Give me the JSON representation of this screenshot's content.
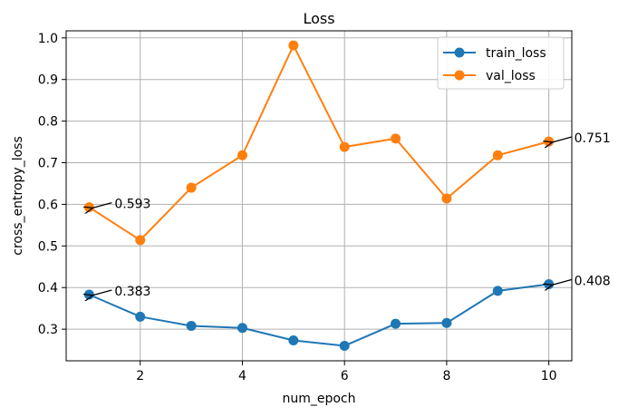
{
  "chart_data": {
    "type": "line",
    "title": "Loss",
    "xlabel": "num_epoch",
    "ylabel": "cross_entropy_loss",
    "x": [
      1,
      2,
      3,
      4,
      5,
      6,
      7,
      8,
      9,
      10
    ],
    "xlim": [
      0.55,
      10.45
    ],
    "ylim": [
      0.224,
      1.017
    ],
    "xticks": [
      2,
      4,
      6,
      8,
      10
    ],
    "yticks": [
      0.3,
      0.4,
      0.5,
      0.6,
      0.7,
      0.8,
      0.9,
      1.0
    ],
    "xtick_labels": [
      "2",
      "4",
      "6",
      "8",
      "10"
    ],
    "ytick_labels": [
      "0.3",
      "0.4",
      "0.5",
      "0.6",
      "0.7",
      "0.8",
      "0.9",
      "1.0"
    ],
    "grid": true,
    "legend_position": "top-right",
    "series": [
      {
        "name": "train_loss",
        "color": "#1f77b4",
        "values": [
          0.383,
          0.33,
          0.308,
          0.303,
          0.273,
          0.26,
          0.313,
          0.315,
          0.392,
          0.408
        ]
      },
      {
        "name": "val_loss",
        "color": "#ff7f0e",
        "values": [
          0.593,
          0.514,
          0.64,
          0.718,
          0.982,
          0.738,
          0.758,
          0.614,
          0.718,
          0.751
        ]
      }
    ],
    "annotations": [
      {
        "series": 0,
        "index": 0,
        "text": "0.383"
      },
      {
        "series": 1,
        "index": 0,
        "text": "0.593"
      },
      {
        "series": 0,
        "index": 9,
        "text": "0.408"
      },
      {
        "series": 1,
        "index": 9,
        "text": "0.751"
      }
    ]
  }
}
